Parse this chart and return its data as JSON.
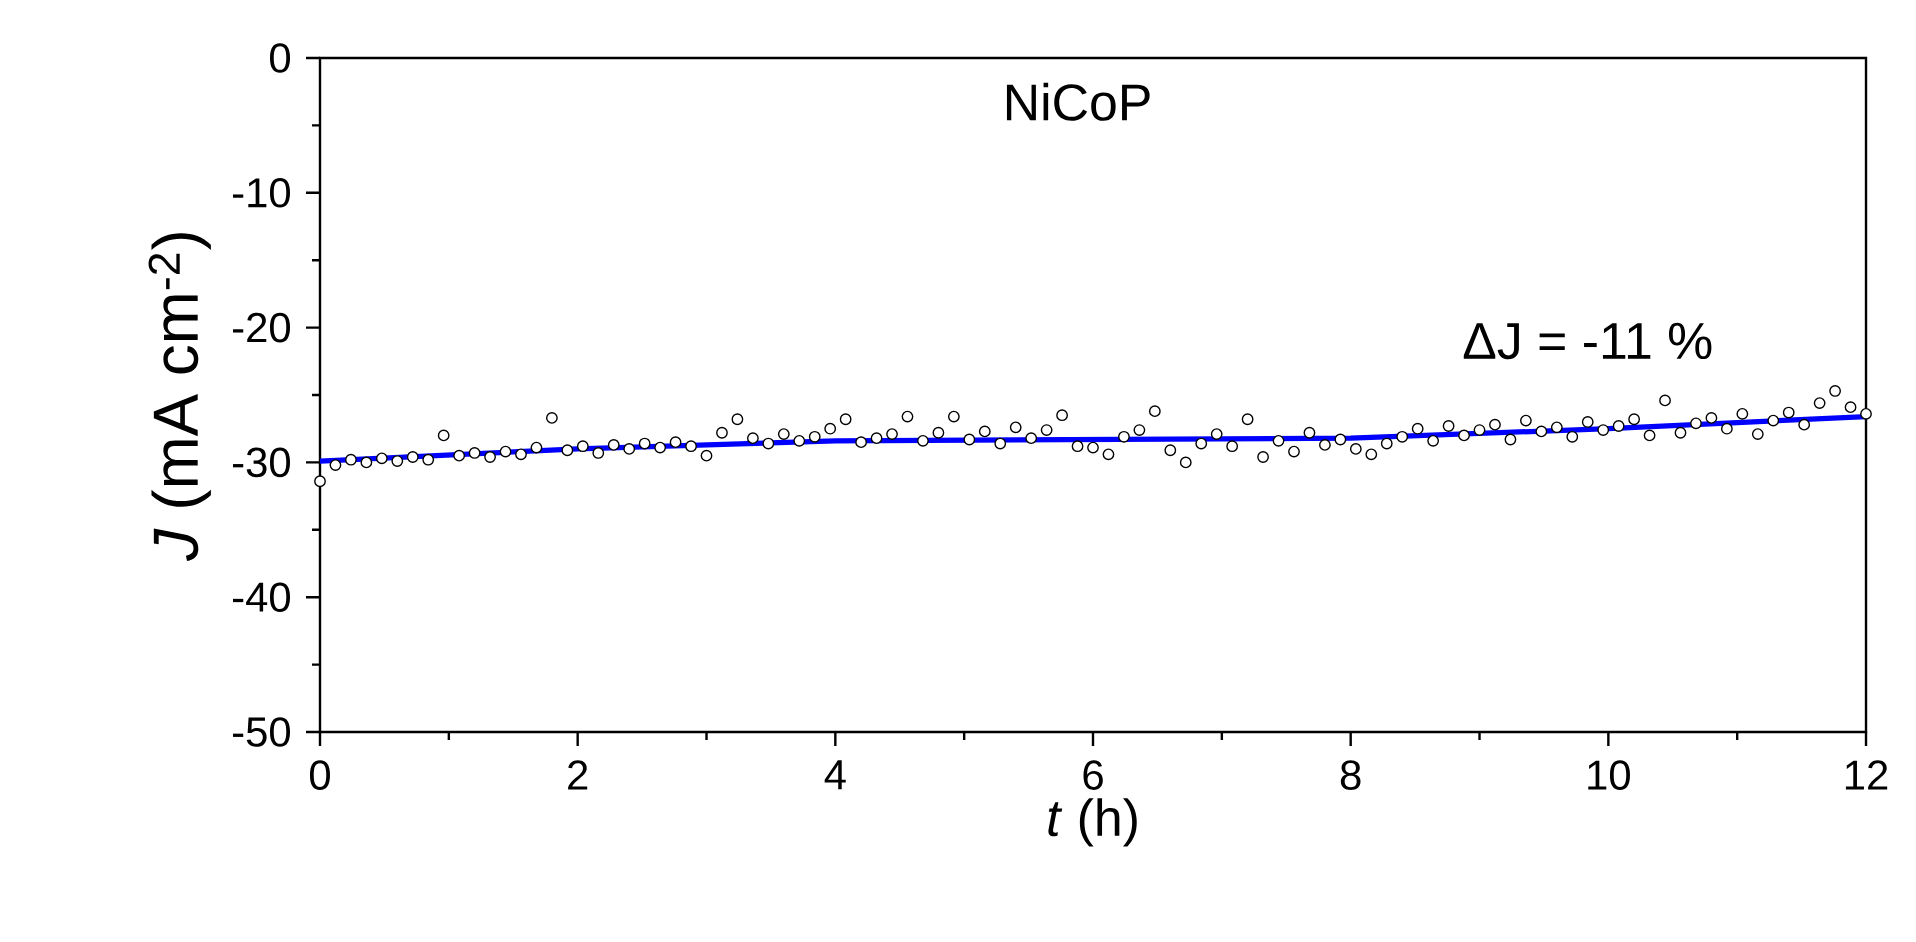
{
  "chart_data": {
    "type": "scatter",
    "xlabel": "*t* (h)",
    "ylabel": "*J* (mA cm$^{-2}$)",
    "annotations": [
      "NiCoP",
      "ΔJ = -11 %"
    ],
    "xlim": [
      0,
      12
    ],
    "ylim": [
      -50,
      0
    ],
    "xticks": [
      0,
      2,
      4,
      6,
      8,
      10,
      12
    ],
    "yticks": [
      0,
      -10,
      -20,
      -30,
      -40,
      -50
    ],
    "grid": false,
    "series": [
      {
        "marker": "circle",
        "color": "#000000",
        "x": [
          0.0,
          0.12,
          0.24,
          0.36,
          0.48,
          0.6,
          0.72,
          0.84,
          0.96,
          1.08,
          1.2,
          1.32,
          1.44,
          1.56,
          1.68,
          1.8,
          1.92,
          2.04,
          2.16,
          2.28,
          2.4,
          2.52,
          2.64,
          2.76,
          2.88,
          3.0,
          3.12,
          3.24,
          3.36,
          3.48,
          3.6,
          3.72,
          3.84,
          3.96,
          4.08,
          4.2,
          4.32,
          4.44,
          4.56,
          4.68,
          4.8,
          4.92,
          5.04,
          5.16,
          5.28,
          5.4,
          5.52,
          5.64,
          5.76,
          5.88,
          6.0,
          6.12,
          6.24,
          6.36,
          6.48,
          6.6,
          6.72,
          6.84,
          6.96,
          7.08,
          7.2,
          7.32,
          7.44,
          7.56,
          7.68,
          7.8,
          7.92,
          8.04,
          8.16,
          8.28,
          8.4,
          8.52,
          8.64,
          8.76,
          8.88,
          9.0,
          9.12,
          9.24,
          9.36,
          9.48,
          9.6,
          9.72,
          9.84,
          9.96,
          10.08,
          10.2,
          10.32,
          10.44,
          10.56,
          10.68,
          10.8,
          10.92,
          11.04,
          11.16,
          11.28,
          11.4,
          11.52,
          11.64,
          11.76,
          11.88,
          12.0
        ],
        "values": [
          -31.4,
          -30.2,
          -29.8,
          -30.0,
          -29.7,
          -29.9,
          -29.6,
          -29.8,
          -28.0,
          -29.5,
          -29.3,
          -29.6,
          -29.2,
          -29.4,
          -28.9,
          -26.7,
          -29.1,
          -28.8,
          -29.3,
          -28.7,
          -29.0,
          -28.6,
          -28.9,
          -28.5,
          -28.8,
          -29.5,
          -27.8,
          -26.8,
          -28.2,
          -28.6,
          -27.9,
          -28.4,
          -28.1,
          -27.5,
          -26.8,
          -28.5,
          -28.2,
          -27.9,
          -26.6,
          -28.4,
          -27.8,
          -26.6,
          -28.3,
          -27.7,
          -28.6,
          -27.4,
          -28.2,
          -27.6,
          -26.5,
          -28.8,
          -28.9,
          -29.4,
          -28.1,
          -27.6,
          -26.2,
          -29.1,
          -30.0,
          -28.6,
          -27.9,
          -28.8,
          -26.8,
          -29.6,
          -28.4,
          -29.2,
          -27.8,
          -28.7,
          -28.3,
          -29.0,
          -29.4,
          -28.6,
          -28.1,
          -27.5,
          -28.4,
          -27.3,
          -28.0,
          -27.6,
          -27.2,
          -28.3,
          -26.9,
          -27.7,
          -27.4,
          -28.1,
          -27.0,
          -27.6,
          -27.3,
          -26.8,
          -28.0,
          -25.4,
          -27.8,
          -27.1,
          -26.7,
          -27.5,
          -26.4,
          -27.9,
          -26.9,
          -26.3,
          -27.2,
          -25.6,
          -24.7,
          -25.9,
          -26.4
        ]
      },
      {
        "type": "line",
        "marker": "none",
        "color": "#0000ff",
        "x": [
          0,
          2,
          4,
          6,
          8,
          10,
          12
        ],
        "values": [
          -29.9,
          -29.0,
          -28.4,
          -28.3,
          -28.2,
          -27.5,
          -26.6
        ]
      }
    ]
  }
}
